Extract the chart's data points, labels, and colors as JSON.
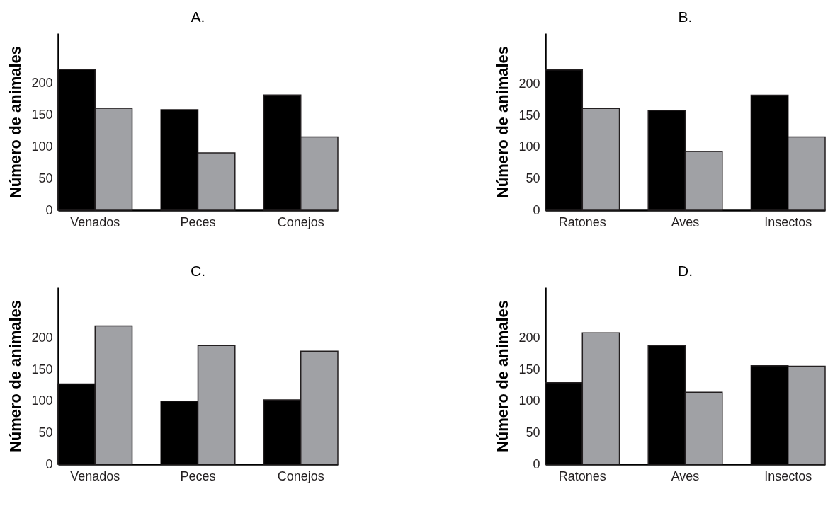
{
  "chart_data": [
    {
      "type": "bar",
      "title": "A.",
      "ylabel": "Número de animales",
      "categories": [
        "Venados",
        "Peces",
        "Conejos"
      ],
      "ylim": [
        0,
        278
      ],
      "yticks": [
        0,
        50,
        100,
        150,
        200
      ],
      "series": [
        {
          "color": "#000000",
          "values": [
            221,
            158,
            181
          ]
        },
        {
          "color": "#a0a1a5",
          "values": [
            160,
            90,
            115
          ]
        }
      ]
    },
    {
      "type": "bar",
      "title": "B.",
      "ylabel": "Número de animales",
      "categories": [
        "Ratones",
        "Aves",
        "Insectos"
      ],
      "ylim": [
        0,
        280
      ],
      "yticks": [
        0,
        50,
        100,
        150,
        200
      ],
      "series": [
        {
          "color": "#000000",
          "values": [
            222,
            158,
            182
          ]
        },
        {
          "color": "#a0a1a5",
          "values": [
            161,
            93,
            116
          ]
        }
      ]
    },
    {
      "type": "bar",
      "title": "C.",
      "ylabel": "Número de animales",
      "categories": [
        "Venados",
        "Peces",
        "Conejos"
      ],
      "ylim": [
        0,
        280
      ],
      "yticks": [
        0,
        50,
        100,
        150,
        200
      ],
      "series": [
        {
          "color": "#000000",
          "values": [
            127,
            100,
            102
          ]
        },
        {
          "color": "#a0a1a5",
          "values": [
            219,
            188,
            179
          ]
        }
      ]
    },
    {
      "type": "bar",
      "title": "D.",
      "ylabel": "Número de animales",
      "categories": [
        "Ratones",
        "Aves",
        "Insectos"
      ],
      "ylim": [
        0,
        280
      ],
      "yticks": [
        0,
        50,
        100,
        150,
        200
      ],
      "series": [
        {
          "color": "#000000",
          "values": [
            129,
            188,
            156
          ]
        },
        {
          "color": "#a0a1a5",
          "values": [
            208,
            114,
            155
          ]
        }
      ]
    }
  ]
}
